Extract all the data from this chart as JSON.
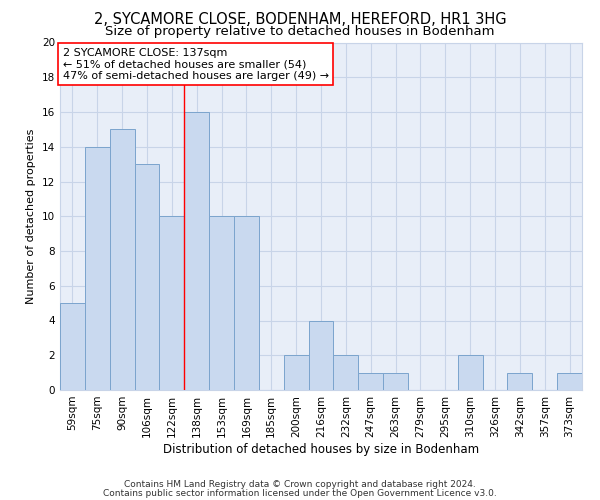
{
  "title1": "2, SYCAMORE CLOSE, BODENHAM, HEREFORD, HR1 3HG",
  "title2": "Size of property relative to detached houses in Bodenham",
  "xlabel": "Distribution of detached houses by size in Bodenham",
  "ylabel": "Number of detached properties",
  "categories": [
    "59sqm",
    "75sqm",
    "90sqm",
    "106sqm",
    "122sqm",
    "138sqm",
    "153sqm",
    "169sqm",
    "185sqm",
    "200sqm",
    "216sqm",
    "232sqm",
    "247sqm",
    "263sqm",
    "279sqm",
    "295sqm",
    "310sqm",
    "326sqm",
    "342sqm",
    "357sqm",
    "373sqm"
  ],
  "values": [
    5,
    14,
    15,
    13,
    10,
    16,
    10,
    10,
    0,
    2,
    4,
    2,
    1,
    1,
    0,
    0,
    2,
    0,
    1,
    0,
    1
  ],
  "bar_color": "#c9d9ef",
  "bar_edge_color": "#7ba4cd",
  "red_line_x": 4.5,
  "annotation_text": "2 SYCAMORE CLOSE: 137sqm\n← 51% of detached houses are smaller (54)\n47% of semi-detached houses are larger (49) →",
  "annotation_box_color": "white",
  "annotation_box_edge_color": "red",
  "ylim": [
    0,
    20
  ],
  "yticks": [
    0,
    2,
    4,
    6,
    8,
    10,
    12,
    14,
    16,
    18,
    20
  ],
  "grid_color": "#c8d4e8",
  "bg_color": "#e8eef8",
  "footer1": "Contains HM Land Registry data © Crown copyright and database right 2024.",
  "footer2": "Contains public sector information licensed under the Open Government Licence v3.0.",
  "title1_fontsize": 10.5,
  "title2_fontsize": 9.5,
  "xlabel_fontsize": 8.5,
  "ylabel_fontsize": 8,
  "tick_fontsize": 7.5,
  "annot_fontsize": 8,
  "footer_fontsize": 6.5
}
